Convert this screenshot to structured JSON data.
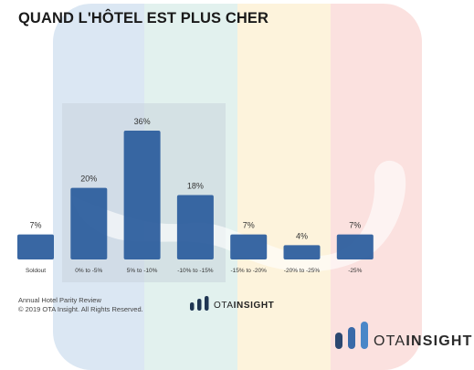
{
  "title": "QUAND L'HÔTEL EST PLUS CHER",
  "footer": {
    "line1": "Annual Hotel Parity Review",
    "line2": "© 2019 OTA Insight. All Rights Reserved."
  },
  "logo": {
    "word_a": "OTA",
    "word_b": "INSIGHT",
    "icon": "ota-insight-bars-icon"
  },
  "colors": {
    "bar": "#2e5f9e",
    "band_blue": "#dbe7f3",
    "band_cyan": "#e2f1ee",
    "band_yellow": "#fdf3dc",
    "band_red": "#fbe1df",
    "highlight": "#c8d4dc",
    "logo_navy": "#1f3552",
    "logo_blue": "#4a87c8"
  },
  "chart_data": {
    "type": "bar",
    "categories": [
      "Soldout",
      "0% to -5%",
      "5% to -10%",
      "-10% to -15%",
      "-15% to -20%",
      "-20% to -25%",
      "-25%"
    ],
    "values": [
      7,
      20,
      36,
      18,
      7,
      4,
      7
    ],
    "data_labels": [
      "7%",
      "20%",
      "36%",
      "18%",
      "7%",
      "4%",
      "7%"
    ],
    "title": "QUAND L'HÔTEL EST PLUS CHER",
    "xlabel": "",
    "ylabel": "",
    "ylim": [
      0,
      36
    ],
    "grid": false,
    "legend": "none"
  }
}
